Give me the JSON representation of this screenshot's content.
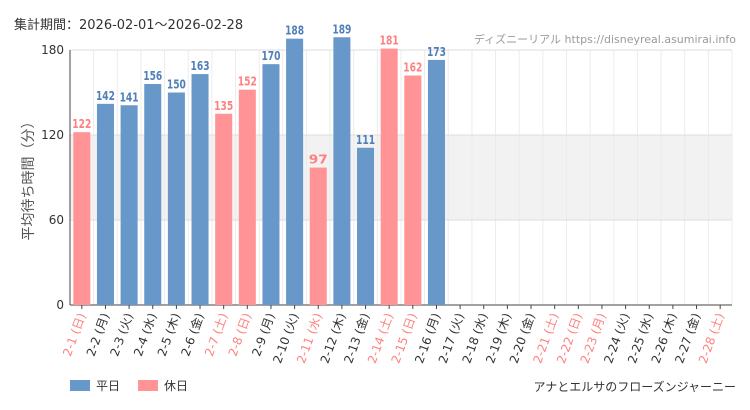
{
  "header": {
    "period_label": "集計期間：2026-02-01～2026-02-28",
    "site_credit": "ディズニーリアル https://disneyreal.asumirai.info"
  },
  "legend": {
    "weekday_label": "平日",
    "holiday_label": "休日"
  },
  "footer": {
    "attraction_name": "アナとエルサのフローズンジャーニー"
  },
  "colors": {
    "weekday": "#6897c9",
    "holiday": "#ff9396",
    "holiday_text": "#ff8080",
    "weekday_text": "#4f7fb8",
    "band": "#f2f2f2"
  },
  "chart_data": {
    "type": "bar",
    "title": "",
    "xlabel": "",
    "ylabel": "平均待ち時間（分）",
    "ylim": [
      0,
      180
    ],
    "yticks": [
      0,
      60,
      120,
      180
    ],
    "highlight_band": [
      60,
      120
    ],
    "categories": [
      "2-1 (日)",
      "2-2 (月)",
      "2-3 (火)",
      "2-4 (水)",
      "2-5 (木)",
      "2-6 (金)",
      "2-7 (土)",
      "2-8 (日)",
      "2-9 (月)",
      "2-10 (火)",
      "2-11 (水)",
      "2-12 (木)",
      "2-13 (金)",
      "2-14 (土)",
      "2-15 (日)",
      "2-16 (月)",
      "2-17 (火)",
      "2-18 (水)",
      "2-19 (木)",
      "2-20 (金)",
      "2-21 (土)",
      "2-22 (日)",
      "2-23 (月)",
      "2-24 (火)",
      "2-25 (水)",
      "2-26 (木)",
      "2-27 (金)",
      "2-28 (土)"
    ],
    "day_type": [
      "holiday",
      "weekday",
      "weekday",
      "weekday",
      "weekday",
      "weekday",
      "holiday",
      "holiday",
      "weekday",
      "weekday",
      "holiday",
      "weekday",
      "weekday",
      "holiday",
      "holiday",
      "weekday",
      "weekday",
      "weekday",
      "weekday",
      "weekday",
      "holiday",
      "holiday",
      "holiday",
      "weekday",
      "weekday",
      "weekday",
      "weekday",
      "holiday"
    ],
    "values": [
      122,
      142,
      141,
      156,
      150,
      163,
      135,
      152,
      170,
      188,
      97,
      189,
      111,
      181,
      162,
      173,
      null,
      null,
      null,
      null,
      null,
      null,
      null,
      null,
      null,
      null,
      null,
      null
    ]
  }
}
